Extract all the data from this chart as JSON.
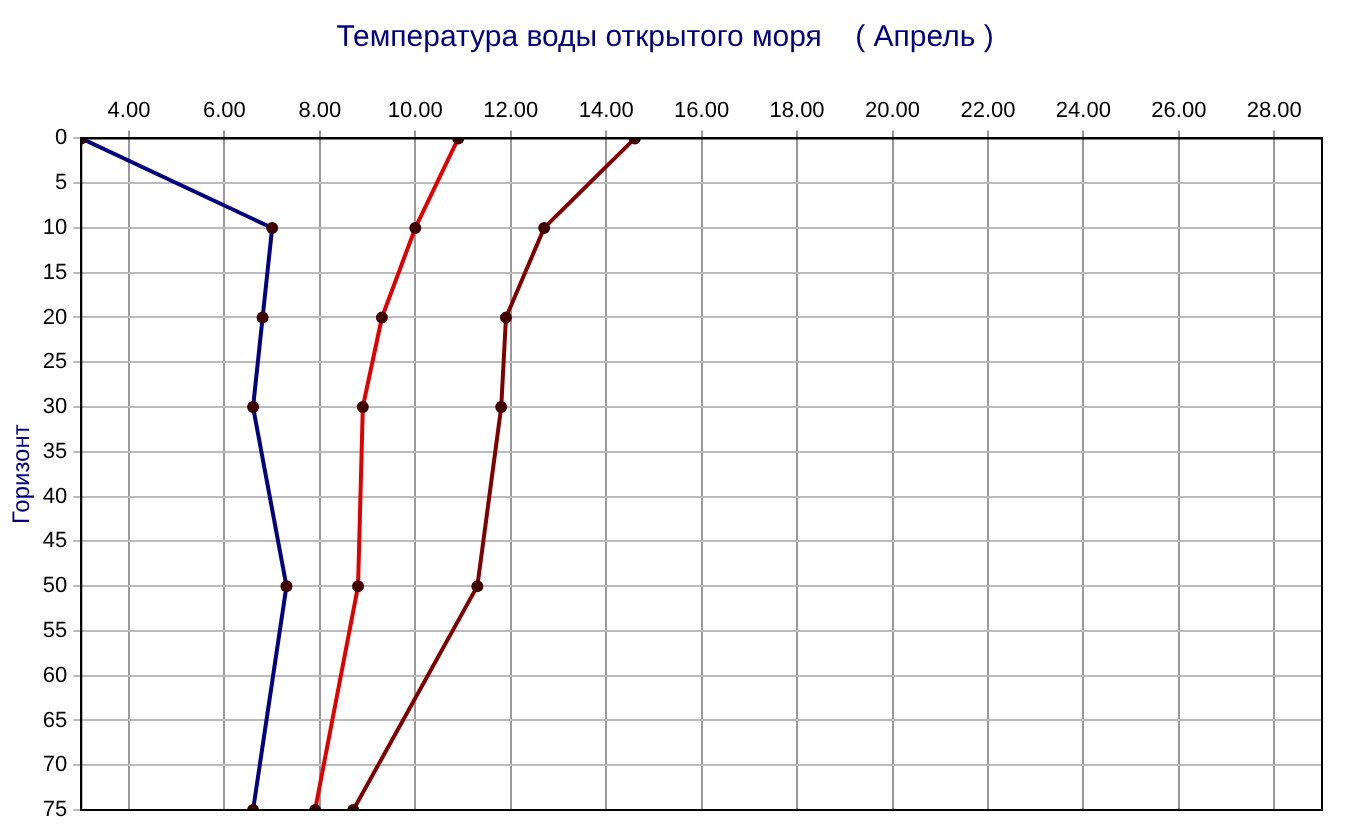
{
  "chart_data": {
    "type": "line",
    "title": "Температура воды открытого моря    ( Апрель )",
    "ylabel": "Горизонт",
    "series": [
      {
        "color": "#000080",
        "x": [
          3.0,
          7.0,
          6.8,
          6.6,
          7.3,
          6.6
        ],
        "values": [
          0,
          10,
          20,
          30,
          50,
          75
        ]
      },
      {
        "color": "#e00000",
        "x": [
          10.9,
          10.0,
          9.3,
          8.9,
          8.8,
          7.9
        ],
        "values": [
          0,
          10,
          20,
          30,
          50,
          75
        ]
      },
      {
        "color": "#800000",
        "x": [
          14.6,
          12.7,
          11.9,
          11.8,
          11.3,
          8.7
        ],
        "values": [
          0,
          10,
          20,
          30,
          50,
          75
        ]
      }
    ],
    "xlim": [
      3,
      29
    ],
    "xticks": [
      {
        "value": 4,
        "label": "4.00"
      },
      {
        "value": 6,
        "label": "6.00"
      },
      {
        "value": 8,
        "label": "8.00"
      },
      {
        "value": 10,
        "label": "10.00"
      },
      {
        "value": 12,
        "label": "12.00"
      },
      {
        "value": 14,
        "label": "14.00"
      },
      {
        "value": 16,
        "label": "16.00"
      },
      {
        "value": 18,
        "label": "18.00"
      },
      {
        "value": 20,
        "label": "20.00"
      },
      {
        "value": 22,
        "label": "22.00"
      },
      {
        "value": 24,
        "label": "24.00"
      },
      {
        "value": 26,
        "label": "26.00"
      },
      {
        "value": 28,
        "label": "28.00"
      }
    ],
    "ylim": [
      75,
      0
    ],
    "yticks": [
      0,
      5,
      10,
      15,
      20,
      25,
      30,
      35,
      40,
      45,
      50,
      55,
      60,
      65,
      70,
      75
    ],
    "grid": true,
    "legend": false,
    "marker": "circle",
    "line_style": "solid"
  }
}
